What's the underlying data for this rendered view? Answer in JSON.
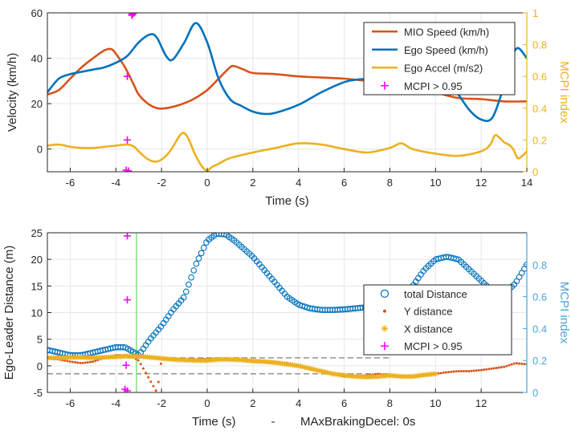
{
  "chart_data": [
    {
      "type": "line",
      "xlabel": "Time (s)",
      "ylabel": "Velocity (km/h)",
      "ylabel_right": "MCPI index",
      "xlim": [
        -7,
        14
      ],
      "ylim": [
        -10,
        60
      ],
      "ylim_right": [
        0,
        1
      ],
      "x_ticks": [
        -6,
        -4,
        -2,
        0,
        2,
        4,
        6,
        8,
        10,
        12,
        14
      ],
      "x_tick_labels": [
        "-6",
        "-4",
        "-2",
        "0",
        "2",
        "4",
        "6",
        "8",
        "10",
        "12",
        "14"
      ],
      "y_ticks": [
        0,
        20,
        40,
        60
      ],
      "y_tick_labels": [
        "0",
        "20",
        "40",
        "60"
      ],
      "y_right_ticks": [
        0,
        0.2,
        0.4,
        0.6,
        0.8,
        1
      ],
      "y_right_tick_labels": [
        "0",
        "0.2",
        "0.4",
        "0.6",
        "0.8",
        "1"
      ],
      "grid": true,
      "legend_position": "top-right",
      "series": [
        {
          "name": "MIO Speed (km/h)",
          "color": "#d95319",
          "axis": "left",
          "x": [
            -7,
            -6.5,
            -6,
            -5.5,
            -5,
            -4.5,
            -4.2,
            -4,
            -3.6,
            -3.2,
            -3,
            -2.6,
            -2.2,
            -1.8,
            -1.2,
            -0.6,
            0,
            0.5,
            1,
            1.2,
            1.6,
            2,
            3,
            4,
            5,
            6,
            7,
            8,
            9,
            10,
            11,
            12,
            13,
            14
          ],
          "y": [
            24,
            26,
            31,
            36,
            40,
            43.5,
            44,
            42,
            36,
            28,
            24,
            20,
            18,
            18,
            19.5,
            22,
            26,
            31,
            36,
            36.5,
            35,
            33.5,
            33,
            32,
            31.5,
            31,
            30,
            29,
            28,
            25,
            22.5,
            22,
            21,
            21
          ]
        },
        {
          "name": "Ego Speed (km/h)",
          "color": "#0072bd",
          "axis": "left",
          "x": [
            -7,
            -6.5,
            -6,
            -5.5,
            -5,
            -4.5,
            -4,
            -3.5,
            -3,
            -2.5,
            -2.2,
            -1.8,
            -1.5,
            -1,
            -0.5,
            0,
            0.5,
            1,
            1.5,
            2,
            2.5,
            3,
            4,
            5,
            6,
            6.5,
            7,
            8,
            9,
            10,
            10.5,
            11,
            11.5,
            12,
            12.5,
            13,
            13.3,
            13.6,
            14
          ],
          "y": [
            25,
            31,
            33,
            34,
            35,
            36,
            38,
            41,
            47,
            50.5,
            49,
            41,
            39.5,
            47,
            55.5,
            47,
            31,
            22,
            19,
            16.5,
            15.5,
            16,
            19.5,
            25,
            29.5,
            30.5,
            31,
            32.5,
            35,
            33,
            30,
            24,
            17,
            13,
            14,
            28,
            39,
            44.5,
            40
          ]
        },
        {
          "name": "Ego Accel (m/s2)",
          "color": "#edb120",
          "axis": "left",
          "x": [
            -7,
            -6.5,
            -6,
            -5.5,
            -5,
            -4.5,
            -4,
            -3.5,
            -3.2,
            -3,
            -2.6,
            -2.2,
            -1.8,
            -1.5,
            -1.2,
            -1,
            -0.8,
            -0.5,
            -0.2,
            0,
            0.2,
            0.5,
            1,
            2,
            3,
            4,
            5,
            6,
            7,
            8,
            8.5,
            9,
            10,
            11,
            12,
            12.4,
            12.6,
            12.8,
            13,
            13.2,
            13.4,
            13.6,
            13.8,
            14
          ],
          "y": [
            1.5,
            2,
            1,
            0.5,
            0.5,
            1,
            1.5,
            2,
            1,
            -1,
            -4.5,
            -5.5,
            -3,
            1,
            6,
            7,
            4,
            -3,
            -8,
            -9.5,
            -8,
            -6.5,
            -4,
            -1.5,
            0.5,
            2.5,
            2,
            0,
            -1.5,
            0.5,
            2.5,
            0,
            -2,
            -3,
            -1,
            2,
            6,
            5,
            3,
            2,
            0,
            -4,
            -3,
            -1
          ]
        },
        {
          "name": "MCPI > 0.95",
          "color": "#ff00ff",
          "axis": "right",
          "marker": "+",
          "x": [
            -3.3,
            -3.3,
            -3.25,
            -3.2,
            -3.5,
            -3.5,
            -3.55,
            -3.45
          ],
          "y": [
            0.99,
            0.985,
            0.995,
            1.0,
            0.6,
            0.2,
            0.01,
            0.005
          ]
        }
      ]
    },
    {
      "type": "scatter",
      "xlabel": "Time (s)",
      "xlabel_suffix": "-",
      "xlabel_extra": "MAxBrakingDecel: 0s",
      "ylabel": "Ego-Leader Distance (m)",
      "ylabel_right": "MCPI index",
      "xlim": [
        -7,
        14
      ],
      "ylim": [
        -5,
        25
      ],
      "ylim_right": [
        0,
        1
      ],
      "x_ticks": [
        -6,
        -4,
        -2,
        0,
        2,
        4,
        6,
        8,
        10,
        12
      ],
      "x_tick_labels": [
        "-6",
        "-4",
        "-2",
        "0",
        "2",
        "4",
        "6",
        "8",
        "10",
        "12"
      ],
      "y_ticks": [
        -5,
        0,
        5,
        10,
        15,
        20,
        25
      ],
      "y_tick_labels": [
        "-5",
        "0",
        "5",
        "10",
        "15",
        "20",
        "25"
      ],
      "y_right_ticks": [
        0,
        0.2,
        0.4,
        0.6,
        0.8
      ],
      "y_right_tick_labels": [
        "0",
        "0.2",
        "0.4",
        "0.6",
        "0.8"
      ],
      "grid": true,
      "legend_position": "right",
      "reference_lines": {
        "dashed_y": [
          1.5,
          -1.5
        ],
        "dashed_x_range": [
          -7,
          8
        ],
        "vertical_x": -3.1,
        "vertical_color": "#7fe07f"
      },
      "series": [
        {
          "name": "total Distance",
          "color": "#0072bd",
          "marker": "o",
          "axis": "left",
          "x": [
            -7,
            -6.5,
            -6,
            -5.5,
            -5,
            -4.5,
            -4,
            -3.6,
            -3.2,
            -3,
            -2.5,
            -2,
            -1.5,
            -1,
            -0.5,
            0,
            0.4,
            0.8,
            1.2,
            1.6,
            2,
            2.5,
            3,
            3.5,
            4,
            4.5,
            5,
            5.5,
            6,
            6.5,
            7,
            7.5,
            8,
            8.5,
            9,
            9.5,
            10,
            10.5,
            11,
            11.5,
            12,
            12.5,
            13,
            13.5,
            14
          ],
          "y": [
            3,
            2.5,
            2,
            2,
            2.5,
            3,
            3.5,
            3.5,
            2.5,
            2,
            5,
            7.5,
            10.5,
            13,
            19,
            23.5,
            24.8,
            24.7,
            23.5,
            22,
            20.5,
            18,
            15.5,
            13,
            11.5,
            10.8,
            10.5,
            10.5,
            10.6,
            10.8,
            11,
            11.5,
            12,
            13,
            15,
            18,
            20,
            20.5,
            20,
            18,
            16,
            14,
            13.5,
            15.5,
            19
          ]
        },
        {
          "name": "Y distance",
          "color": "#d95319",
          "marker": ".",
          "axis": "left",
          "x": [
            -7,
            -6.5,
            -6,
            -5.5,
            -5,
            -4.5,
            -4,
            -3.5,
            -3.2,
            -3,
            -2.8,
            -2.6,
            -2.4,
            -2.2,
            -2,
            -1.5,
            -1,
            -0.5,
            0,
            0.5,
            1,
            1.5,
            2,
            2.5,
            3,
            3.5,
            4,
            4.5,
            5,
            5.5,
            6,
            6.5,
            7,
            7.5,
            8,
            8.5,
            9,
            9.5,
            10,
            10.5,
            11,
            11.5,
            12,
            12.5,
            13,
            13.5,
            14
          ],
          "y": [
            1.5,
            1.2,
            0.8,
            0.5,
            0.8,
            1.5,
            2,
            2,
            1.5,
            1,
            -0.5,
            -2,
            -3.5,
            -5,
            1.2,
            1.2,
            1.2,
            1.2,
            1.3,
            1.3,
            1.2,
            1,
            0.8,
            0.7,
            0.6,
            0.5,
            0,
            -0.5,
            -1,
            -1.5,
            -2,
            -2,
            -1.8,
            -1.5,
            -1.8,
            -2,
            -2,
            -1.8,
            -1.5,
            -1.2,
            -1,
            -1,
            -0.8,
            -0.5,
            -0.2,
            0.5,
            0.3
          ]
        },
        {
          "name": "X distance",
          "color": "#edb120",
          "marker": "*",
          "axis": "left",
          "x": [
            -7,
            -6.5,
            -6,
            -5.5,
            -5,
            -4.5,
            -4,
            -3.5,
            -3,
            -2.5,
            -2,
            -1.5,
            -1,
            -0.5,
            0,
            0.5,
            1,
            1.5,
            2,
            2.5,
            3,
            3.5,
            4,
            4.5,
            5,
            5.5,
            6,
            6.5,
            7,
            7.5,
            8,
            8.5,
            9,
            9.5,
            10
          ],
          "y": [
            1.5,
            1.5,
            1.6,
            1.6,
            1.5,
            1.6,
            1.7,
            1.8,
            1.8,
            1.6,
            1.4,
            1.2,
            1.1,
            1,
            1,
            1.2,
            1.2,
            1.1,
            0.9,
            0.8,
            0.6,
            0.3,
            0,
            -0.5,
            -1,
            -1.5,
            -1.8,
            -2,
            -2.1,
            -2,
            -1.8,
            -2,
            -2,
            -1.7,
            -1.5
          ]
        },
        {
          "name": "MCPI > 0.95",
          "color": "#ff00ff",
          "marker": "+",
          "axis": "right",
          "x": [
            -3.5,
            -3.5,
            -3.55,
            -3.6,
            -3.5
          ],
          "y": [
            0.98,
            0.58,
            0.17,
            0.02,
            0.01
          ]
        }
      ]
    }
  ]
}
